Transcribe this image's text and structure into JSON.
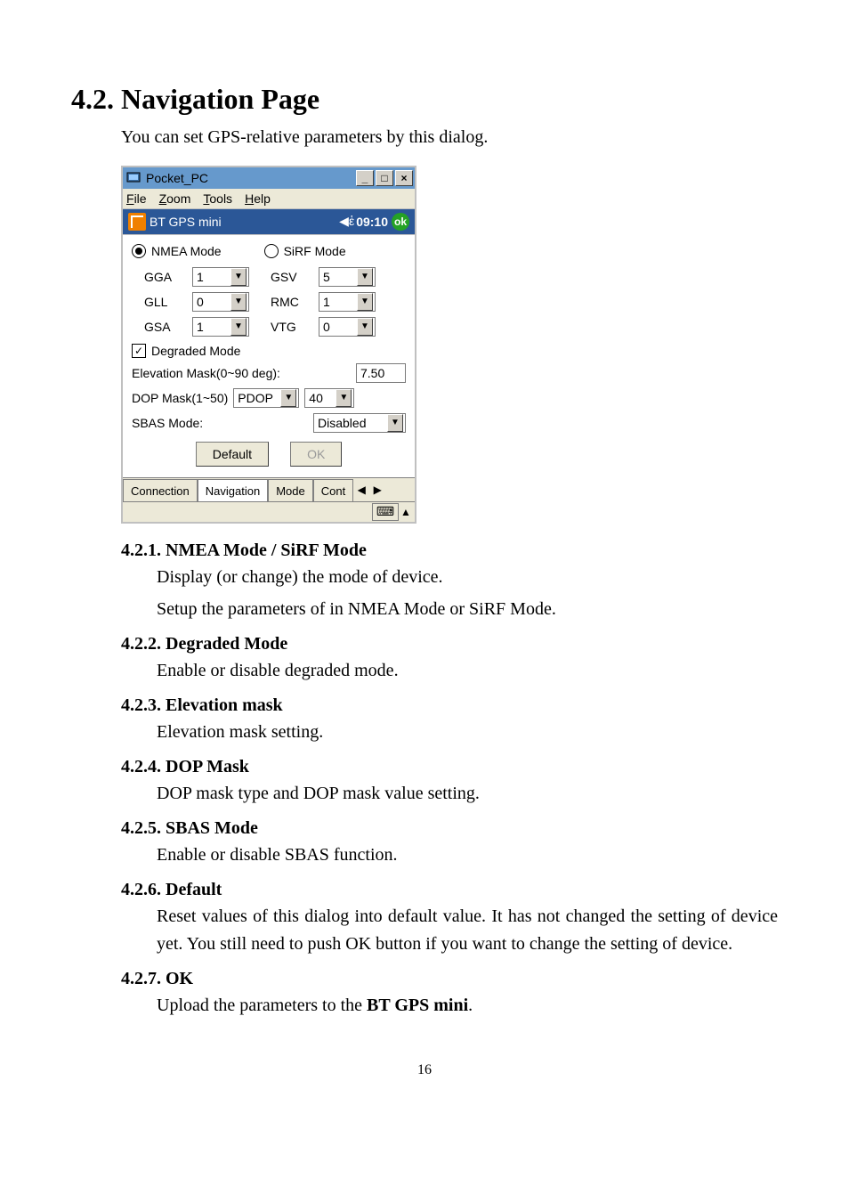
{
  "page": {
    "number": "16"
  },
  "heading": {
    "num": "4.2.",
    "title": "Navigation Page"
  },
  "lead": "You can set GPS-relative parameters by this dialog.",
  "emu": {
    "outerTitle": "Pocket_PC",
    "menu": {
      "file": "File",
      "zoom": "Zoom",
      "tools": "Tools",
      "help": "Help",
      "file_k": "F",
      "zoom_k": "Z",
      "tools_k": "T",
      "help_k": "H"
    },
    "winbtns": {
      "min": "_",
      "max": "□",
      "close": "×"
    },
    "ceTitle": {
      "app": "BT GPS mini",
      "clock": "09:10",
      "ok": "ok"
    },
    "radios": {
      "nmea": "NMEA Mode",
      "sirf": "SiRF Mode"
    },
    "left": {
      "GGA": "1",
      "GLL": "0",
      "GSA": "1"
    },
    "right": {
      "GSV": "5",
      "RMC": "1",
      "VTG": "0"
    },
    "degraded": "Degraded Mode",
    "elevLabel": "Elevation Mask(0~90 deg):",
    "elevVal": "7.50",
    "dopLabel": "DOP Mask(1~50)",
    "dopType": "PDOP",
    "dopVal": "40",
    "sbasLabel": "SBAS Mode:",
    "sbasVal": "Disabled",
    "btnDefault": "Default",
    "btnOk": "OK",
    "tabs": {
      "t1": "Connection",
      "t2": "Navigation",
      "t3": "Mode",
      "t4": "Cont"
    }
  },
  "sections": [
    {
      "h": "4.2.1. NMEA Mode / SiRF Mode",
      "p": [
        "Display (or change) the mode of device.",
        "Setup the parameters of in NMEA Mode or SiRF Mode."
      ]
    },
    {
      "h": "4.2.2. Degraded Mode",
      "p": [
        "Enable or disable degraded mode."
      ]
    },
    {
      "h": "4.2.3. Elevation mask",
      "p": [
        "Elevation mask setting."
      ]
    },
    {
      "h": "4.2.4. DOP Mask",
      "p": [
        "DOP mask type and DOP mask value setting."
      ]
    },
    {
      "h": "4.2.5. SBAS Mode",
      "p": [
        "Enable or disable SBAS function."
      ]
    },
    {
      "h": "4.2.6. Default",
      "p": [
        "Reset values of this dialog into default value. It has not changed the setting of device yet. You still need to push OK button if you want to change the setting of device."
      ],
      "justify": true
    },
    {
      "h": "4.2.7. OK",
      "p": [
        "Upload the parameters to the <b>BT GPS mini</b>."
      ]
    }
  ]
}
